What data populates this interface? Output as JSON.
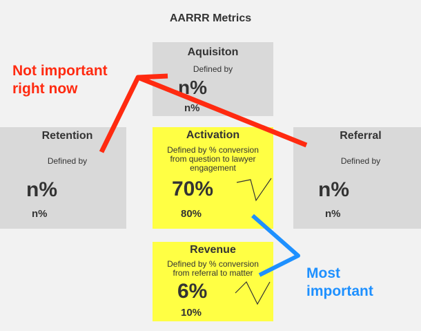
{
  "title": "AARRR Metrics",
  "cards": {
    "acquisition": {
      "name": "Aquisiton",
      "defined": "Defined by",
      "big": "n%",
      "small": "n%",
      "highlighted": false
    },
    "retention": {
      "name": "Retention",
      "defined": "Defined by",
      "big": "n%",
      "small": "n%",
      "highlighted": false
    },
    "activation": {
      "name": "Activation",
      "defined": "Defined by % conversion from question to lawyer engagement",
      "big": "70%",
      "small": "80%",
      "highlighted": true
    },
    "referral": {
      "name": "Referral",
      "defined": "Defined by",
      "big": "n%",
      "small": "n%",
      "highlighted": false
    },
    "revenue": {
      "name": "Revenue",
      "defined": "Defined by % conversion from referral to matter",
      "big": "6%",
      "small": "10%",
      "highlighted": true
    }
  },
  "annotations": {
    "red": {
      "line1": "Not important",
      "line2": "right now",
      "color": "#ff2a10"
    },
    "blue": {
      "line1": "Most",
      "line2": "important",
      "color": "#1e90ff"
    }
  },
  "colors": {
    "grey_card": "#d9d9d9",
    "highlight_card": "#ffff44",
    "background": "#f2f2f2"
  }
}
